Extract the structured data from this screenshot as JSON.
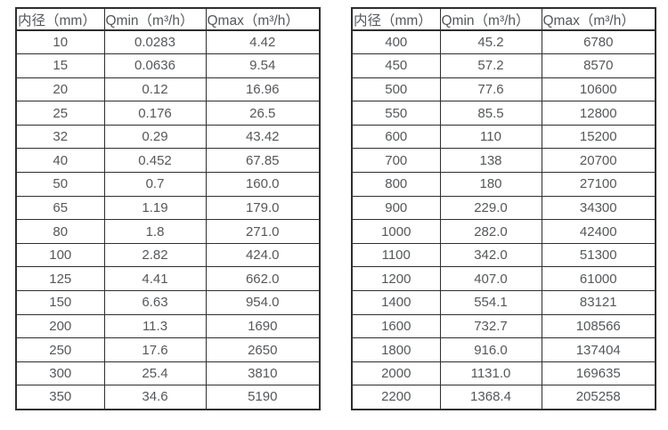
{
  "colors": {
    "border": "#2e2e2e",
    "text": "#555759",
    "background": "#ffffff"
  },
  "tables": [
    {
      "name": "flow-rates-small-diameters",
      "headers": [
        "内径（mm）",
        "Qmin（m³/h）",
        "Qmax（m³/h）"
      ],
      "rows": [
        [
          "10",
          "0.0283",
          "4.42"
        ],
        [
          "15",
          "0.0636",
          "9.54"
        ],
        [
          "20",
          "0.12",
          "16.96"
        ],
        [
          "25",
          "0.176",
          "26.5"
        ],
        [
          "32",
          "0.29",
          "43.42"
        ],
        [
          "40",
          "0.452",
          "67.85"
        ],
        [
          "50",
          "0.7",
          "160.0"
        ],
        [
          "65",
          "1.19",
          "179.0"
        ],
        [
          "80",
          "1.8",
          "271.0"
        ],
        [
          "100",
          "2.82",
          "424.0"
        ],
        [
          "125",
          "4.41",
          "662.0"
        ],
        [
          "150",
          "6.63",
          "954.0"
        ],
        [
          "200",
          "11.3",
          "1690"
        ],
        [
          "250",
          "17.6",
          "2650"
        ],
        [
          "300",
          "25.4",
          "3810"
        ],
        [
          "350",
          "34.6",
          "5190"
        ]
      ]
    },
    {
      "name": "flow-rates-large-diameters",
      "headers": [
        "内径（mm）",
        "Qmin（m³/h）",
        "Qmax（m³/h）"
      ],
      "rows": [
        [
          "400",
          "45.2",
          "6780"
        ],
        [
          "450",
          "57.2",
          "8570"
        ],
        [
          "500",
          "77.6",
          "10600"
        ],
        [
          "550",
          "85.5",
          "12800"
        ],
        [
          "600",
          "110",
          "15200"
        ],
        [
          "700",
          "138",
          "20700"
        ],
        [
          "800",
          "180",
          "27100"
        ],
        [
          "900",
          "229.0",
          "34300"
        ],
        [
          "1000",
          "282.0",
          "42400"
        ],
        [
          "1100",
          "342.0",
          "51300"
        ],
        [
          "1200",
          "407.0",
          "61000"
        ],
        [
          "1400",
          "554.1",
          "83121"
        ],
        [
          "1600",
          "732.7",
          "108566"
        ],
        [
          "1800",
          "916.0",
          "137404"
        ],
        [
          "2000",
          "1131.0",
          "169635"
        ],
        [
          "2200",
          "1368.4",
          "205258"
        ]
      ]
    }
  ]
}
